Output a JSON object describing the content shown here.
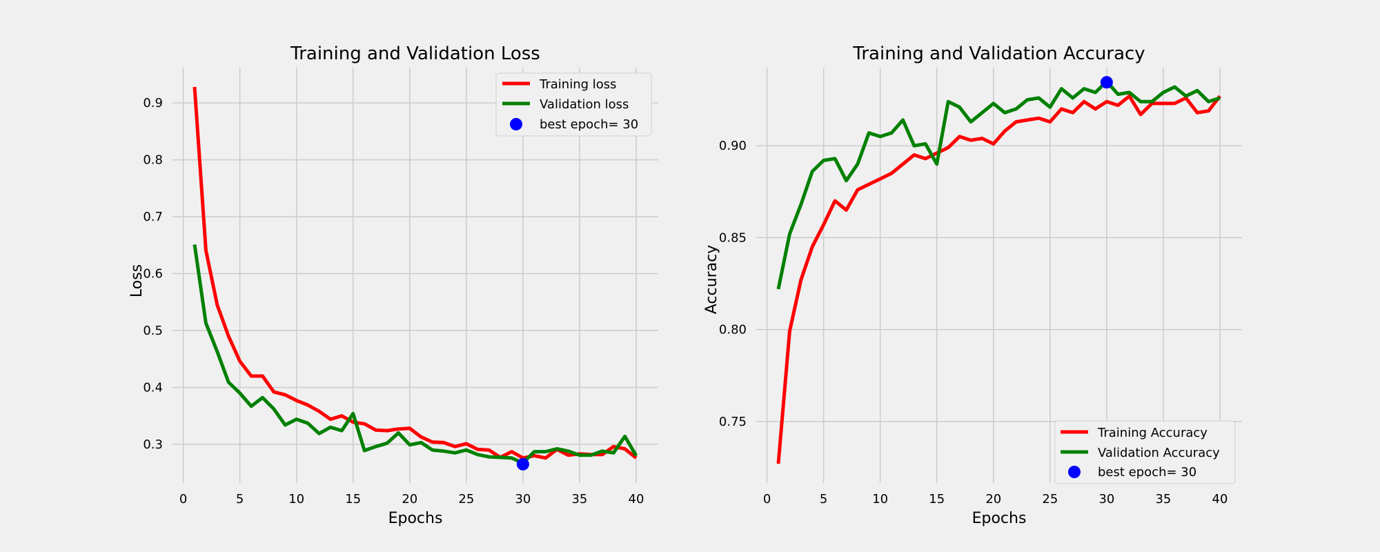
{
  "chart_data": [
    {
      "type": "line",
      "title": "Training and Validation Loss",
      "xlabel": "Epochs",
      "ylabel": "Loss",
      "xlim": [
        -0.95,
        41.95
      ],
      "ylim": [
        0.232,
        0.962
      ],
      "xticks": [
        0,
        5,
        10,
        15,
        20,
        25,
        30,
        35,
        40
      ],
      "yticks": [
        0.3,
        0.4,
        0.5,
        0.6,
        0.7,
        0.8,
        0.9
      ],
      "ytick_decimals": 1,
      "grid": true,
      "legend_position": "upper right",
      "x": [
        1,
        2,
        3,
        4,
        5,
        6,
        7,
        8,
        9,
        10,
        11,
        12,
        13,
        14,
        15,
        16,
        17,
        18,
        19,
        20,
        21,
        22,
        23,
        24,
        25,
        26,
        27,
        28,
        29,
        30,
        31,
        32,
        33,
        34,
        35,
        36,
        37,
        38,
        39,
        40
      ],
      "series": [
        {
          "name": "Training loss",
          "color": "#ff0000",
          "values": [
            0.928,
            0.641,
            0.545,
            0.49,
            0.446,
            0.42,
            0.42,
            0.392,
            0.387,
            0.377,
            0.369,
            0.358,
            0.344,
            0.35,
            0.339,
            0.336,
            0.325,
            0.324,
            0.327,
            0.328,
            0.313,
            0.304,
            0.303,
            0.296,
            0.301,
            0.291,
            0.29,
            0.277,
            0.287,
            0.276,
            0.28,
            0.276,
            0.291,
            0.281,
            0.283,
            0.282,
            0.282,
            0.296,
            0.292,
            0.276
          ]
        },
        {
          "name": "Validation loss",
          "color": "#008000",
          "values": [
            0.651,
            0.513,
            0.463,
            0.409,
            0.39,
            0.367,
            0.382,
            0.362,
            0.334,
            0.344,
            0.337,
            0.319,
            0.33,
            0.324,
            0.354,
            0.289,
            0.296,
            0.302,
            0.32,
            0.299,
            0.303,
            0.29,
            0.288,
            0.285,
            0.29,
            0.282,
            0.278,
            0.277,
            0.276,
            0.267,
            0.287,
            0.287,
            0.292,
            0.288,
            0.281,
            0.281,
            0.288,
            0.285,
            0.314,
            0.28
          ]
        }
      ],
      "best_point": {
        "label": "best epoch= 30",
        "x": 30,
        "y": 0.265,
        "color": "#0000ff"
      }
    },
    {
      "type": "line",
      "title": "Training and Validation Accuracy",
      "xlabel": "Epochs",
      "ylabel": "Accuracy",
      "xlim": [
        -0.95,
        41.95
      ],
      "ylim": [
        0.7165,
        0.9425
      ],
      "xticks": [
        0,
        5,
        10,
        15,
        20,
        25,
        30,
        35,
        40
      ],
      "yticks": [
        0.75,
        0.8,
        0.85,
        0.9
      ],
      "ytick_decimals": 2,
      "grid": true,
      "legend_position": "lower right",
      "x": [
        1,
        2,
        3,
        4,
        5,
        6,
        7,
        8,
        9,
        10,
        11,
        12,
        13,
        14,
        15,
        16,
        17,
        18,
        19,
        20,
        21,
        22,
        23,
        24,
        25,
        26,
        27,
        28,
        29,
        30,
        31,
        32,
        33,
        34,
        35,
        36,
        37,
        38,
        39,
        40
      ],
      "series": [
        {
          "name": "Training Accuracy",
          "color": "#ff0000",
          "values": [
            0.727,
            0.799,
            0.827,
            0.845,
            0.857,
            0.87,
            0.865,
            0.876,
            0.879,
            0.882,
            0.885,
            0.89,
            0.895,
            0.893,
            0.896,
            0.899,
            0.905,
            0.903,
            0.904,
            0.901,
            0.908,
            0.913,
            0.914,
            0.915,
            0.913,
            0.92,
            0.918,
            0.924,
            0.92,
            0.924,
            0.922,
            0.927,
            0.917,
            0.923,
            0.923,
            0.923,
            0.926,
            0.918,
            0.919,
            0.927
          ]
        },
        {
          "name": "Validation Accuracy",
          "color": "#008000",
          "values": [
            0.822,
            0.852,
            0.868,
            0.886,
            0.892,
            0.893,
            0.881,
            0.89,
            0.907,
            0.905,
            0.907,
            0.914,
            0.9,
            0.901,
            0.89,
            0.924,
            0.921,
            0.913,
            0.918,
            0.923,
            0.918,
            0.92,
            0.925,
            0.926,
            0.921,
            0.931,
            0.926,
            0.931,
            0.929,
            0.935,
            0.928,
            0.929,
            0.924,
            0.924,
            0.929,
            0.932,
            0.927,
            0.93,
            0.924,
            0.926
          ]
        }
      ],
      "best_point": {
        "label": "best epoch= 30",
        "x": 30,
        "y": 0.9345,
        "color": "#0000ff"
      }
    }
  ]
}
